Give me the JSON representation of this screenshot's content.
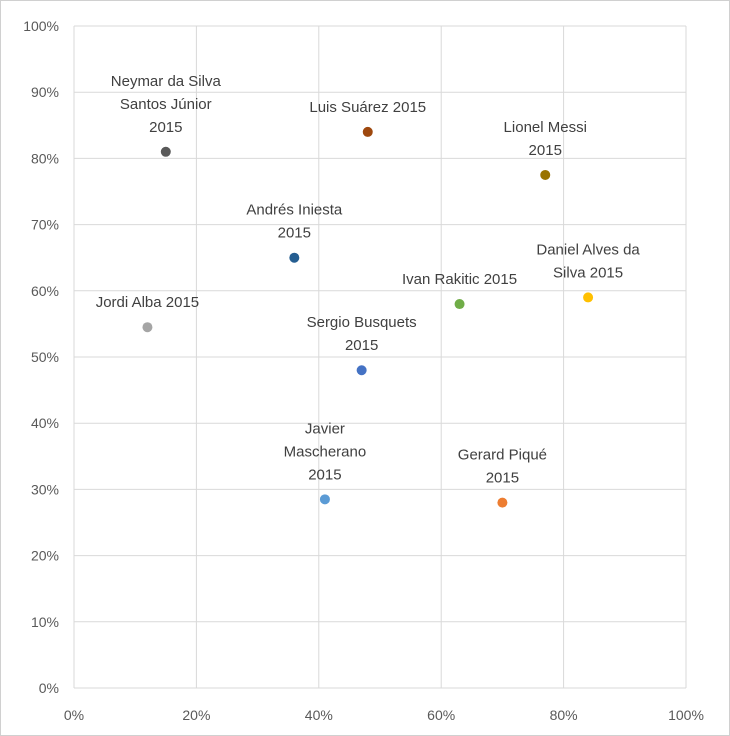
{
  "chart_data": {
    "type": "scatter",
    "title": "",
    "xlabel": "",
    "ylabel": "",
    "xlim": [
      0,
      100
    ],
    "ylim": [
      0,
      100
    ],
    "x_ticks": [
      "0%",
      "20%",
      "40%",
      "60%",
      "80%",
      "100%"
    ],
    "y_ticks": [
      "0%",
      "10%",
      "20%",
      "30%",
      "40%",
      "50%",
      "60%",
      "70%",
      "80%",
      "90%",
      "100%"
    ],
    "grid": true,
    "legend": "none",
    "points": [
      {
        "label": "Neymar da Silva Santos Júnior 2015",
        "label_lines": [
          "Neymar da Silva",
          "Santos Júnior",
          "2015"
        ],
        "x": 15,
        "y": 81,
        "color": "#595959"
      },
      {
        "label": "Luis Suárez 2015",
        "label_lines": [
          "Luis Suárez 2015"
        ],
        "x": 48,
        "y": 84,
        "color": "#9e480e"
      },
      {
        "label": "Lionel Messi 2015",
        "label_lines": [
          "Lionel Messi",
          "2015"
        ],
        "x": 77,
        "y": 77.5,
        "color": "#997300"
      },
      {
        "label": "Andrés Iniesta 2015",
        "label_lines": [
          "Andrés Iniesta",
          "2015"
        ],
        "x": 36,
        "y": 65,
        "color": "#255e91"
      },
      {
        "label": "Daniel Alves da Silva 2015",
        "label_lines": [
          "Daniel Alves da",
          "Silva 2015"
        ],
        "x": 84,
        "y": 59,
        "color": "#ffc000"
      },
      {
        "label": "Ivan Rakitic 2015",
        "label_lines": [
          "Ivan Rakitic 2015"
        ],
        "x": 63,
        "y": 58,
        "color": "#70ad47"
      },
      {
        "label": "Jordi Alba 2015",
        "label_lines": [
          "Jordi Alba 2015"
        ],
        "x": 12,
        "y": 54.5,
        "color": "#a5a5a5"
      },
      {
        "label": "Sergio Busquets 2015",
        "label_lines": [
          "Sergio Busquets",
          "2015"
        ],
        "x": 47,
        "y": 48,
        "color": "#4472c4"
      },
      {
        "label": "Javier Mascherano 2015",
        "label_lines": [
          "Javier",
          "Mascherano",
          "2015"
        ],
        "x": 41,
        "y": 28.5,
        "color": "#5b9bd5"
      },
      {
        "label": "Gerard Piqué 2015",
        "label_lines": [
          "Gerard Piqué",
          "2015"
        ],
        "x": 70,
        "y": 28,
        "color": "#ed7d31"
      }
    ]
  }
}
